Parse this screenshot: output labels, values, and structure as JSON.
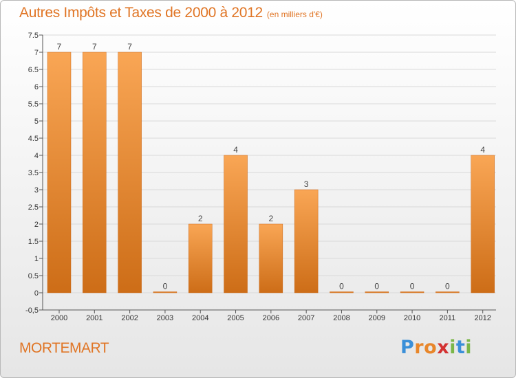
{
  "header": {
    "title": "Autres Impôts et Taxes de 2000 à 2012",
    "subtitle": "(en milliers d'€)"
  },
  "footer": {
    "town": "MORTEMART",
    "logo": {
      "letters": [
        "P",
        "r",
        "o",
        "x",
        "i",
        "t",
        "i"
      ],
      "colors": [
        "#3a8fd8",
        "#e8862a",
        "#e8862a",
        "#d33232",
        "#7ab648",
        "#3a8fd8",
        "#7ab648"
      ]
    }
  },
  "colors": {
    "bar_light": "#f9a655",
    "bar_dark": "#cd6d17",
    "title": "#e07525",
    "grid": "#d9d9d9",
    "axis": "#555555"
  },
  "chart_data": {
    "type": "bar",
    "title": "Autres Impôts et Taxes de 2000 à 2012",
    "subtitle": "(en milliers d'€)",
    "categories": [
      "2000",
      "2001",
      "2002",
      "2003",
      "2004",
      "2005",
      "2006",
      "2007",
      "2008",
      "2009",
      "2010",
      "2011",
      "2012"
    ],
    "values": [
      7,
      7,
      7,
      0,
      2,
      4,
      2,
      3,
      0,
      0,
      0,
      0,
      4
    ],
    "data_labels": [
      "7",
      "7",
      "7",
      "0",
      "2",
      "4",
      "2",
      "3",
      "0",
      "0",
      "0",
      "0",
      "4"
    ],
    "yticks": [
      "-0,5",
      "0",
      "0.5",
      "1",
      "1.5",
      "2",
      "2.5",
      "3",
      "3.5",
      "4",
      "4.5",
      "5",
      "5.5",
      "6",
      "6.5",
      "7",
      "7.5"
    ],
    "ylim": [
      -0.5,
      7.5
    ],
    "xlabel": "",
    "ylabel": "",
    "grid": true
  }
}
